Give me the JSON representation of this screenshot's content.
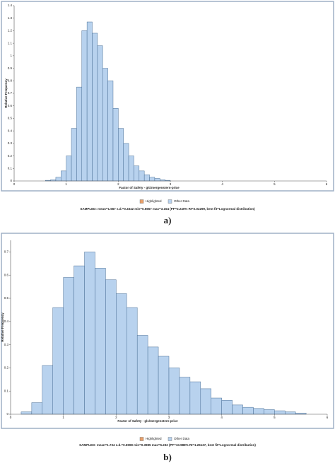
{
  "chart_data": [
    {
      "type": "histogram",
      "x_label": "Factor of Safety - glc/mergenstern-price",
      "y_label": "Relative Frequency",
      "bins": [
        0.6,
        0.7,
        0.8,
        0.9,
        1.0,
        1.1,
        1.2,
        1.3,
        1.4,
        1.5,
        1.6,
        1.7,
        1.8,
        1.9,
        2.0,
        2.1,
        2.2,
        2.3,
        2.4,
        2.5,
        2.6,
        2.7,
        2.8,
        2.9,
        3.0
      ],
      "values": [
        0.005,
        0.01,
        0.03,
        0.08,
        0.2,
        0.42,
        0.75,
        1.2,
        1.27,
        1.18,
        1.08,
        0.9,
        0.8,
        0.58,
        0.42,
        0.3,
        0.2,
        0.12,
        0.08,
        0.05,
        0.03,
        0.02,
        0.01,
        0.005
      ],
      "color": "#b8d2ee",
      "legend": [
        {
          "name": "Highlighted",
          "color": "#e8a06a"
        },
        {
          "name": "Other Data",
          "color": "#b8d2ee"
        }
      ],
      "xlim": [
        0,
        6
      ],
      "xticks": [
        0,
        1,
        2,
        3,
        4,
        5,
        6
      ],
      "ylim": [
        0,
        1.4
      ],
      "yticks": [
        0,
        0.1,
        0.2,
        0.3,
        0.4,
        0.5,
        0.6,
        0.7,
        0.8,
        0.9,
        1,
        1.1,
        1.2,
        1.3,
        1.4
      ],
      "stats": "SAMPLED: mean=1.567 s.d.=0.3342 min=0.6657 max=3.154  (PF=2.240% RI=2.02299, best fit=Lognormal distribution)",
      "caption": "a)"
    },
    {
      "type": "histogram",
      "x_label": "Factor of Safety - glc/mergenstern-price",
      "y_label": "Relative Frequency",
      "bins": [
        0.2,
        0.4,
        0.6,
        0.8,
        1.0,
        1.2,
        1.4,
        1.6,
        1.8,
        2.0,
        2.2,
        2.4,
        2.6,
        2.8,
        3.0,
        3.2,
        3.4,
        3.6,
        3.8,
        4.0,
        4.2,
        4.4,
        4.6,
        4.8,
        5.0,
        5.2,
        5.4,
        5.6
      ],
      "values": [
        0.01,
        0.05,
        0.21,
        0.46,
        0.59,
        0.64,
        0.7,
        0.63,
        0.58,
        0.52,
        0.46,
        0.34,
        0.29,
        0.25,
        0.2,
        0.16,
        0.14,
        0.11,
        0.07,
        0.06,
        0.04,
        0.03,
        0.025,
        0.02,
        0.015,
        0.01,
        0.005
      ],
      "color": "#b8d2ee",
      "legend": [
        {
          "name": "Highlighted",
          "color": "#e8a06a"
        },
        {
          "name": "Other Data",
          "color": "#b8d2ee"
        }
      ],
      "xlim": [
        0,
        6
      ],
      "xticks": [
        0,
        1,
        2,
        3,
        4,
        5,
        6
      ],
      "ylim": [
        0,
        0.75
      ],
      "yticks": [
        0,
        0.1,
        0.2,
        0.3,
        0.4,
        0.5,
        0.6,
        0.7
      ],
      "stats": "SAMPLED: mean=1.734 s.d.=0.6908 min=0.3985 max=5.232  (PF=10.988% RI=1.26137, best fit=Lognormal distribution)",
      "caption": "b)"
    }
  ]
}
